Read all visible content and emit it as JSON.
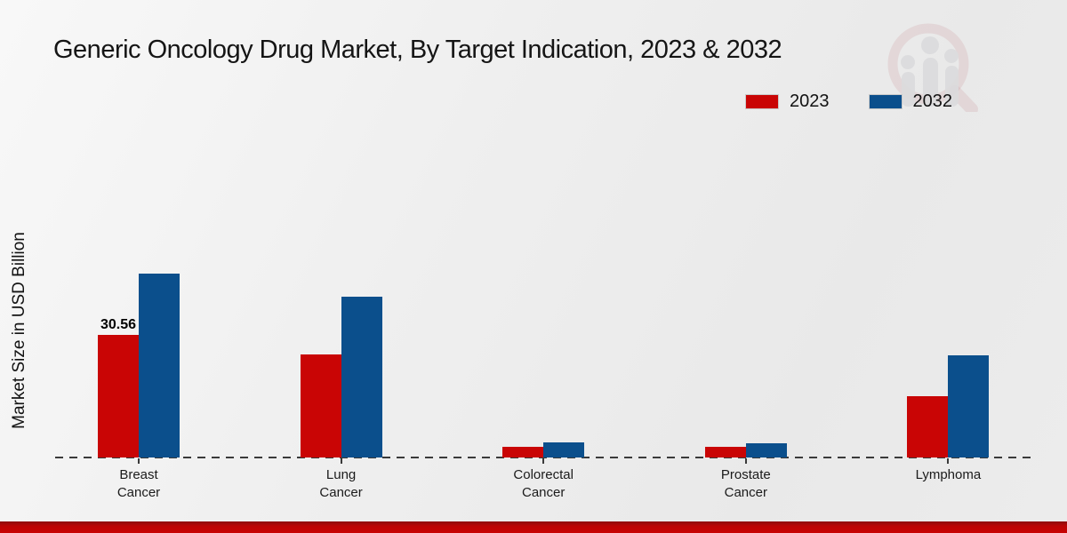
{
  "watermark": {
    "name": "magnifier-people-bars-logo"
  },
  "chart_data": {
    "type": "bar",
    "title": "Generic Oncology Drug Market, By Target Indication, 2023 & 2032",
    "ylabel": "Market Size in USD Billion",
    "xlabel": "",
    "categories": [
      "Breast Cancer",
      "Lung Cancer",
      "Colorectal Cancer",
      "Prostate Cancer",
      "Lymphoma"
    ],
    "tick_label_lines": [
      [
        "Breast",
        "Cancer"
      ],
      [
        "Lung",
        "Cancer"
      ],
      [
        "Colorectal",
        "Cancer"
      ],
      [
        "Prostate",
        "Cancer"
      ],
      [
        "Lymphoma"
      ]
    ],
    "series": [
      {
        "name": "2023",
        "color": "#c90505",
        "values": [
          30.56,
          25.7,
          2.7,
          2.7,
          15.3
        ]
      },
      {
        "name": "2032",
        "color": "#0b4f8c",
        "values": [
          45.9,
          40.1,
          3.8,
          3.6,
          25.5
        ]
      }
    ],
    "annotations": [
      {
        "series_index": 0,
        "category_index": 0,
        "text": "30.56"
      }
    ],
    "ylim": [
      0,
      50
    ],
    "grid": false,
    "legend_position": "top-right",
    "baseline_style": "dashed"
  }
}
